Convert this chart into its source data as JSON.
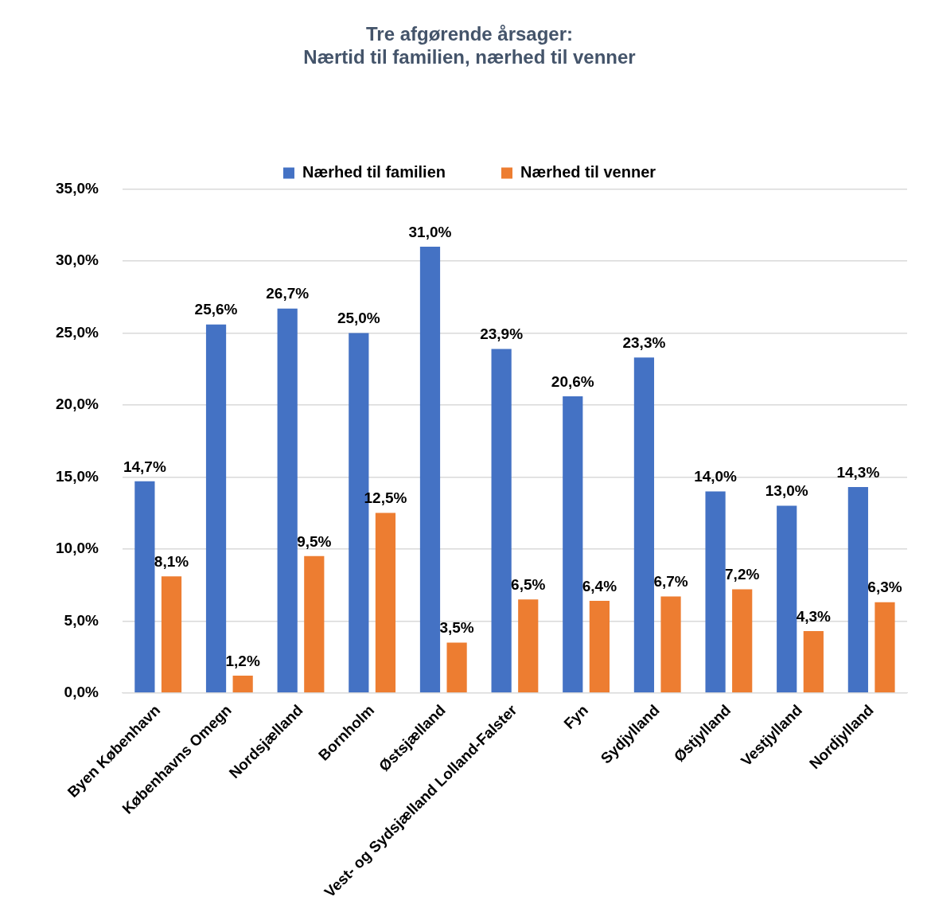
{
  "chart_data": {
    "type": "bar",
    "title": "Tre afgørende årsager:\nNærtid til familien, nærhed til venner",
    "categories": [
      "Byen København",
      "Københavns Omegn",
      "Nordsjælland",
      "Bornholm",
      "Østsjælland",
      "Vest- og Sydsjælland Lolland-Falster",
      "Fyn",
      "Sydjylland",
      "Østjylland",
      "Vestjylland",
      "Nordjylland"
    ],
    "series": [
      {
        "name": "Nærhed til familien",
        "color": "#4472c4",
        "values": [
          14.7,
          25.6,
          26.7,
          25.0,
          31.0,
          23.9,
          20.6,
          23.3,
          14.0,
          13.0,
          14.3
        ],
        "value_labels": [
          "14,7%",
          "25,6%",
          "26,7%",
          "25,0%",
          "31,0%",
          "23,9%",
          "20,6%",
          "23,3%",
          "14,0%",
          "13,0%",
          "14,3%"
        ]
      },
      {
        "name": "Nærhed til venner",
        "color": "#ed7d31",
        "values": [
          8.1,
          1.2,
          9.5,
          12.5,
          3.5,
          6.5,
          6.4,
          6.7,
          7.2,
          4.3,
          6.3
        ],
        "value_labels": [
          "8,1%",
          "1,2%",
          "9,5%",
          "12,5%",
          "3,5%",
          "6,5%",
          "6,4%",
          "6,7%",
          "7,2%",
          "4,3%",
          "6,3%"
        ]
      }
    ],
    "ylim": [
      0,
      35
    ],
    "yticks": [
      {
        "value": 0,
        "label": "0,0%"
      },
      {
        "value": 5,
        "label": "5,0%"
      },
      {
        "value": 10,
        "label": "10,0%"
      },
      {
        "value": 15,
        "label": "15,0%"
      },
      {
        "value": 20,
        "label": "20,0%"
      },
      {
        "value": 25,
        "label": "25,0%"
      },
      {
        "value": 30,
        "label": "30,0%"
      },
      {
        "value": 35,
        "label": "35,0%"
      }
    ],
    "grid": "y",
    "legend": "top"
  }
}
